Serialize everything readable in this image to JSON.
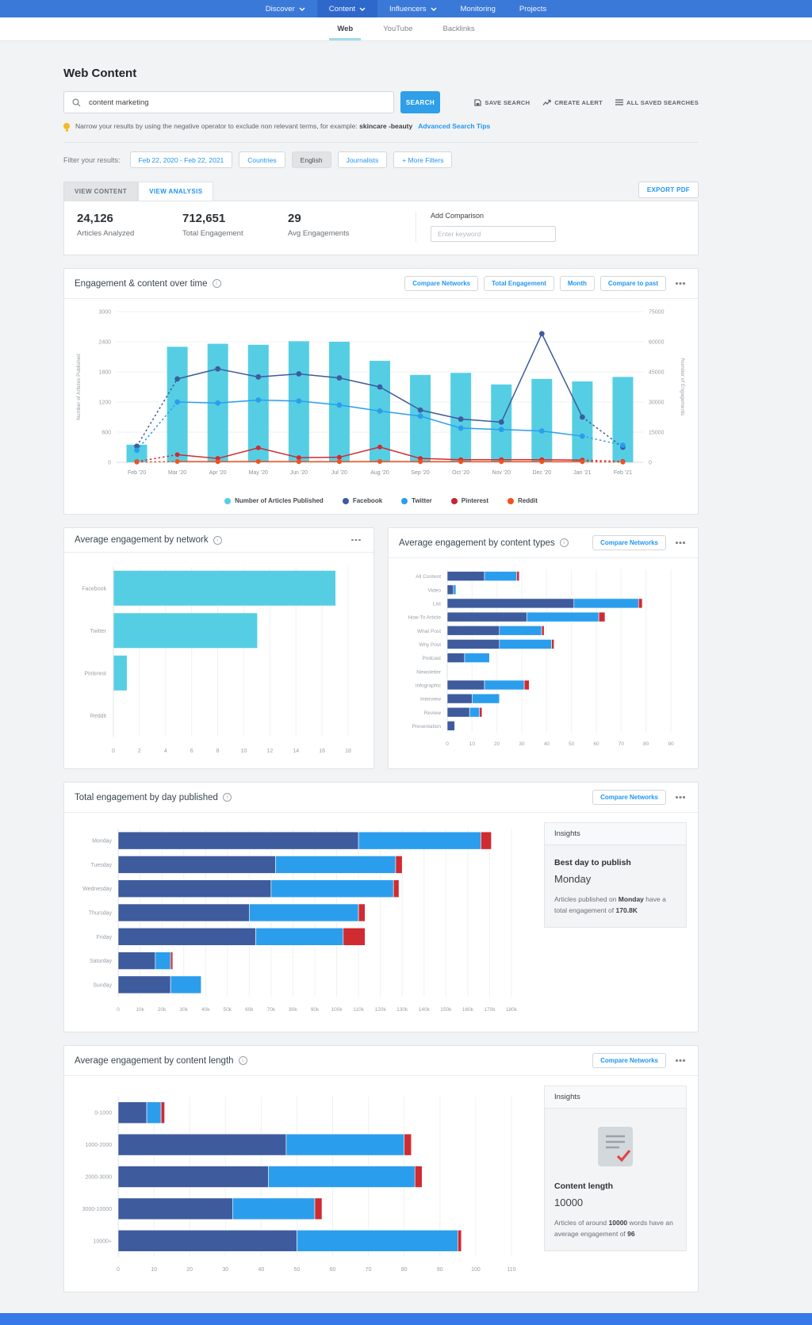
{
  "colors": {
    "nav_blue": "#3b79d8",
    "nav_active_blue": "#2f68cb",
    "accent_blue": "#2196f3",
    "search_button_blue": "#2e9fe8",
    "cyan": "#55cee4",
    "facebook_navy": "#3e5b9d",
    "twitter_blue": "#2b9ded",
    "pinterest_red": "#cf2b31",
    "reddit_orange": "#f4511e"
  },
  "nav": {
    "items": [
      {
        "label": "Discover",
        "chevron": true
      },
      {
        "label": "Content",
        "chevron": true,
        "active": true
      },
      {
        "label": "Influencers",
        "chevron": true
      },
      {
        "label": "Monitoring",
        "chevron": false
      },
      {
        "label": "Projects",
        "chevron": false
      }
    ]
  },
  "subnav": {
    "tabs": [
      {
        "label": "Web",
        "active": true
      },
      {
        "label": "YouTube",
        "active": false
      },
      {
        "label": "Backlinks",
        "active": false
      }
    ]
  },
  "header": {
    "title": "Web Content",
    "search_value": "content marketing",
    "search_button": "SEARCH",
    "actions": [
      {
        "label": "SAVE SEARCH",
        "icon": "save-icon"
      },
      {
        "label": "CREATE ALERT",
        "icon": "trending-up-icon"
      },
      {
        "label": "ALL SAVED SEARCHES",
        "icon": "list-icon"
      }
    ],
    "tip": [
      {
        "t": "Narrow your results by using the negative operator to exclude non relevant terms, for example: "
      },
      {
        "t": "skincare -beauty",
        "b": true
      }
    ],
    "tip_link": "Advanced Search Tips"
  },
  "filters": {
    "label": "Filter your results:",
    "chips": [
      {
        "label": "Feb 22, 2020 - Feb 22, 2021",
        "selected": false
      },
      {
        "label": "Countries",
        "selected": false
      },
      {
        "label": "English",
        "selected": true
      },
      {
        "label": "Journalists",
        "selected": false
      },
      {
        "label": "+ More Filters",
        "selected": false
      }
    ]
  },
  "view_tabs": {
    "content_tab": "VIEW CONTENT",
    "analysis_tab": "VIEW ANALYSIS",
    "export_button": "EXPORT PDF"
  },
  "stats": {
    "items": [
      {
        "value": "24,126",
        "label": "Articles Analyzed"
      },
      {
        "value": "712,651",
        "label": "Total Engagement"
      },
      {
        "value": "29",
        "label": "Avg Engagements"
      }
    ],
    "comparison_label": "Add Comparison",
    "comparison_placeholder": "Enter keyword"
  },
  "chart_data": [
    {
      "id": "engagement-over-time",
      "type": "combo-bar-line",
      "title": "Engagement & content over time",
      "buttons": [
        "Compare Networks",
        "Total Engagement",
        "Month",
        "Compare to past"
      ],
      "x": [
        "Feb '20",
        "Mar '20",
        "Apr '20",
        "May '20",
        "Jun '20",
        "Jul '20",
        "Aug '20",
        "Sep '20",
        "Oct '20",
        "Nov '20",
        "Dec '20",
        "Jan '21",
        "Feb '21"
      ],
      "bars": {
        "name": "Number of Articles Published",
        "axis": "left",
        "values": [
          350,
          2300,
          2360,
          2340,
          2410,
          2400,
          2020,
          1740,
          1780,
          1550,
          1660,
          1610,
          1700
        ]
      },
      "series": [
        {
          "name": "Facebook",
          "axis": "right",
          "values": [
            8000,
            41500,
            46500,
            42500,
            44000,
            42000,
            37500,
            26000,
            21500,
            20000,
            64000,
            22500,
            7500
          ]
        },
        {
          "name": "Twitter",
          "axis": "right",
          "values": [
            6000,
            30000,
            29500,
            31000,
            30500,
            28500,
            25500,
            23000,
            17000,
            16300,
            15600,
            13000,
            8500
          ]
        },
        {
          "name": "Pinterest",
          "axis": "right",
          "values": [
            300,
            3800,
            1900,
            7200,
            2300,
            2500,
            7600,
            1900,
            1300,
            1300,
            1300,
            1100,
            400
          ]
        },
        {
          "name": "Reddit",
          "axis": "right",
          "values": [
            100,
            400,
            300,
            400,
            300,
            300,
            400,
            300,
            300,
            300,
            300,
            300,
            100
          ]
        }
      ],
      "left_axis": {
        "label": "Number of Articles Published",
        "ticks": [
          0,
          600,
          1200,
          1800,
          2400,
          3000
        ],
        "max": 3000
      },
      "right_axis": {
        "label": "Number of Engagements",
        "ticks": [
          0,
          15000,
          30000,
          45000,
          60000,
          75000
        ],
        "max": 75000
      },
      "line_style_note": "first and last segments dotted",
      "legend": [
        "Number of Articles Published",
        "Facebook",
        "Twitter",
        "Pinterest",
        "Reddit"
      ]
    },
    {
      "id": "avg-engagement-by-network",
      "type": "bar",
      "orientation": "horizontal",
      "title": "Average engagement by network",
      "categories": [
        "Facebook",
        "Twitter",
        "Pinterest",
        "Reddit"
      ],
      "values": [
        17,
        11,
        1,
        0
      ],
      "xticks": [
        0,
        2,
        4,
        6,
        8,
        10,
        12,
        14,
        16,
        18
      ],
      "xmax": 18
    },
    {
      "id": "avg-engagement-by-content-types",
      "type": "bar",
      "stacked": true,
      "orientation": "horizontal",
      "title": "Average engagement by content types",
      "buttons": [
        "Compare Networks"
      ],
      "categories": [
        "All Content",
        "Video",
        "List",
        "How-To Article",
        "What Post",
        "Why Post",
        "Podcast",
        "Newsletter",
        "Infographic",
        "Interview",
        "Review",
        "Presentation"
      ],
      "series": [
        {
          "name": "Facebook",
          "values": [
            15,
            2.5,
            51,
            32,
            21,
            21,
            7,
            0,
            15,
            10,
            9,
            3
          ]
        },
        {
          "name": "Twitter",
          "values": [
            13,
            1,
            26,
            29,
            17,
            21,
            10,
            0,
            16,
            11,
            4,
            0
          ]
        },
        {
          "name": "Pinterest",
          "values": [
            1,
            0,
            1.5,
            2.5,
            1,
            1,
            0,
            0,
            2,
            0,
            1,
            0
          ]
        }
      ],
      "xticks": [
        0,
        10,
        20,
        30,
        40,
        50,
        60,
        70,
        80,
        90
      ],
      "xmax": 90
    },
    {
      "id": "total-engagement-by-day-published",
      "type": "bar",
      "stacked": true,
      "orientation": "horizontal",
      "title": "Total engagement by day published",
      "buttons": [
        "Compare Networks"
      ],
      "categories": [
        "Monday",
        "Tuesday",
        "Wednesday",
        "Thursday",
        "Friday",
        "Saturday",
        "Sunday"
      ],
      "series": [
        {
          "name": "Facebook",
          "values": [
            110000,
            72000,
            70000,
            60000,
            63000,
            17000,
            24000
          ]
        },
        {
          "name": "Twitter",
          "values": [
            56000,
            55000,
            56000,
            50000,
            40000,
            7000,
            14000
          ]
        },
        {
          "name": "Pinterest",
          "values": [
            4800,
            3000,
            2500,
            3000,
            10000,
            1000,
            0
          ]
        }
      ],
      "xticks": [
        0,
        10000,
        20000,
        30000,
        40000,
        50000,
        60000,
        70000,
        80000,
        90000,
        100000,
        110000,
        120000,
        130000,
        140000,
        150000,
        160000,
        170000,
        180000
      ],
      "xtick_labels": [
        "0",
        "10k",
        "20k",
        "30k",
        "40k",
        "50k",
        "60k",
        "70k",
        "80k",
        "90k",
        "100k",
        "110k",
        "120k",
        "130k",
        "140k",
        "150k",
        "160k",
        "170k",
        "180k"
      ],
      "xmax": 180000,
      "insight": {
        "header": "Insights",
        "title": "Best day to publish",
        "value": "Monday",
        "note": [
          {
            "t": "Articles published on "
          },
          {
            "t": "Monday",
            "b": true
          },
          {
            "t": " have a total engagement of "
          },
          {
            "t": "170.8K",
            "b": true
          }
        ]
      }
    },
    {
      "id": "avg-engagement-by-content-length",
      "type": "bar",
      "stacked": true,
      "orientation": "horizontal",
      "title": "Average engagement by content length",
      "buttons": [
        "Compare Networks"
      ],
      "categories": [
        "0-1000",
        "1000-2000",
        "2000-3000",
        "3000-10000",
        "10000+"
      ],
      "series": [
        {
          "name": "Facebook",
          "values": [
            8,
            47,
            42,
            32,
            50
          ]
        },
        {
          "name": "Twitter",
          "values": [
            4,
            33,
            41,
            23,
            45
          ]
        },
        {
          "name": "Pinterest",
          "values": [
            1,
            2,
            2,
            2,
            1
          ]
        }
      ],
      "xticks": [
        0,
        10,
        20,
        30,
        40,
        50,
        60,
        70,
        80,
        90,
        100,
        110
      ],
      "xmax": 110,
      "insight": {
        "header": "Insights",
        "icon": "document-check-icon",
        "title": "Content length",
        "value": "10000",
        "note": [
          {
            "t": "Articles of around "
          },
          {
            "t": "10000",
            "b": true
          },
          {
            "t": " words have an average engagement of "
          },
          {
            "t": "96",
            "b": true
          }
        ]
      }
    }
  ]
}
